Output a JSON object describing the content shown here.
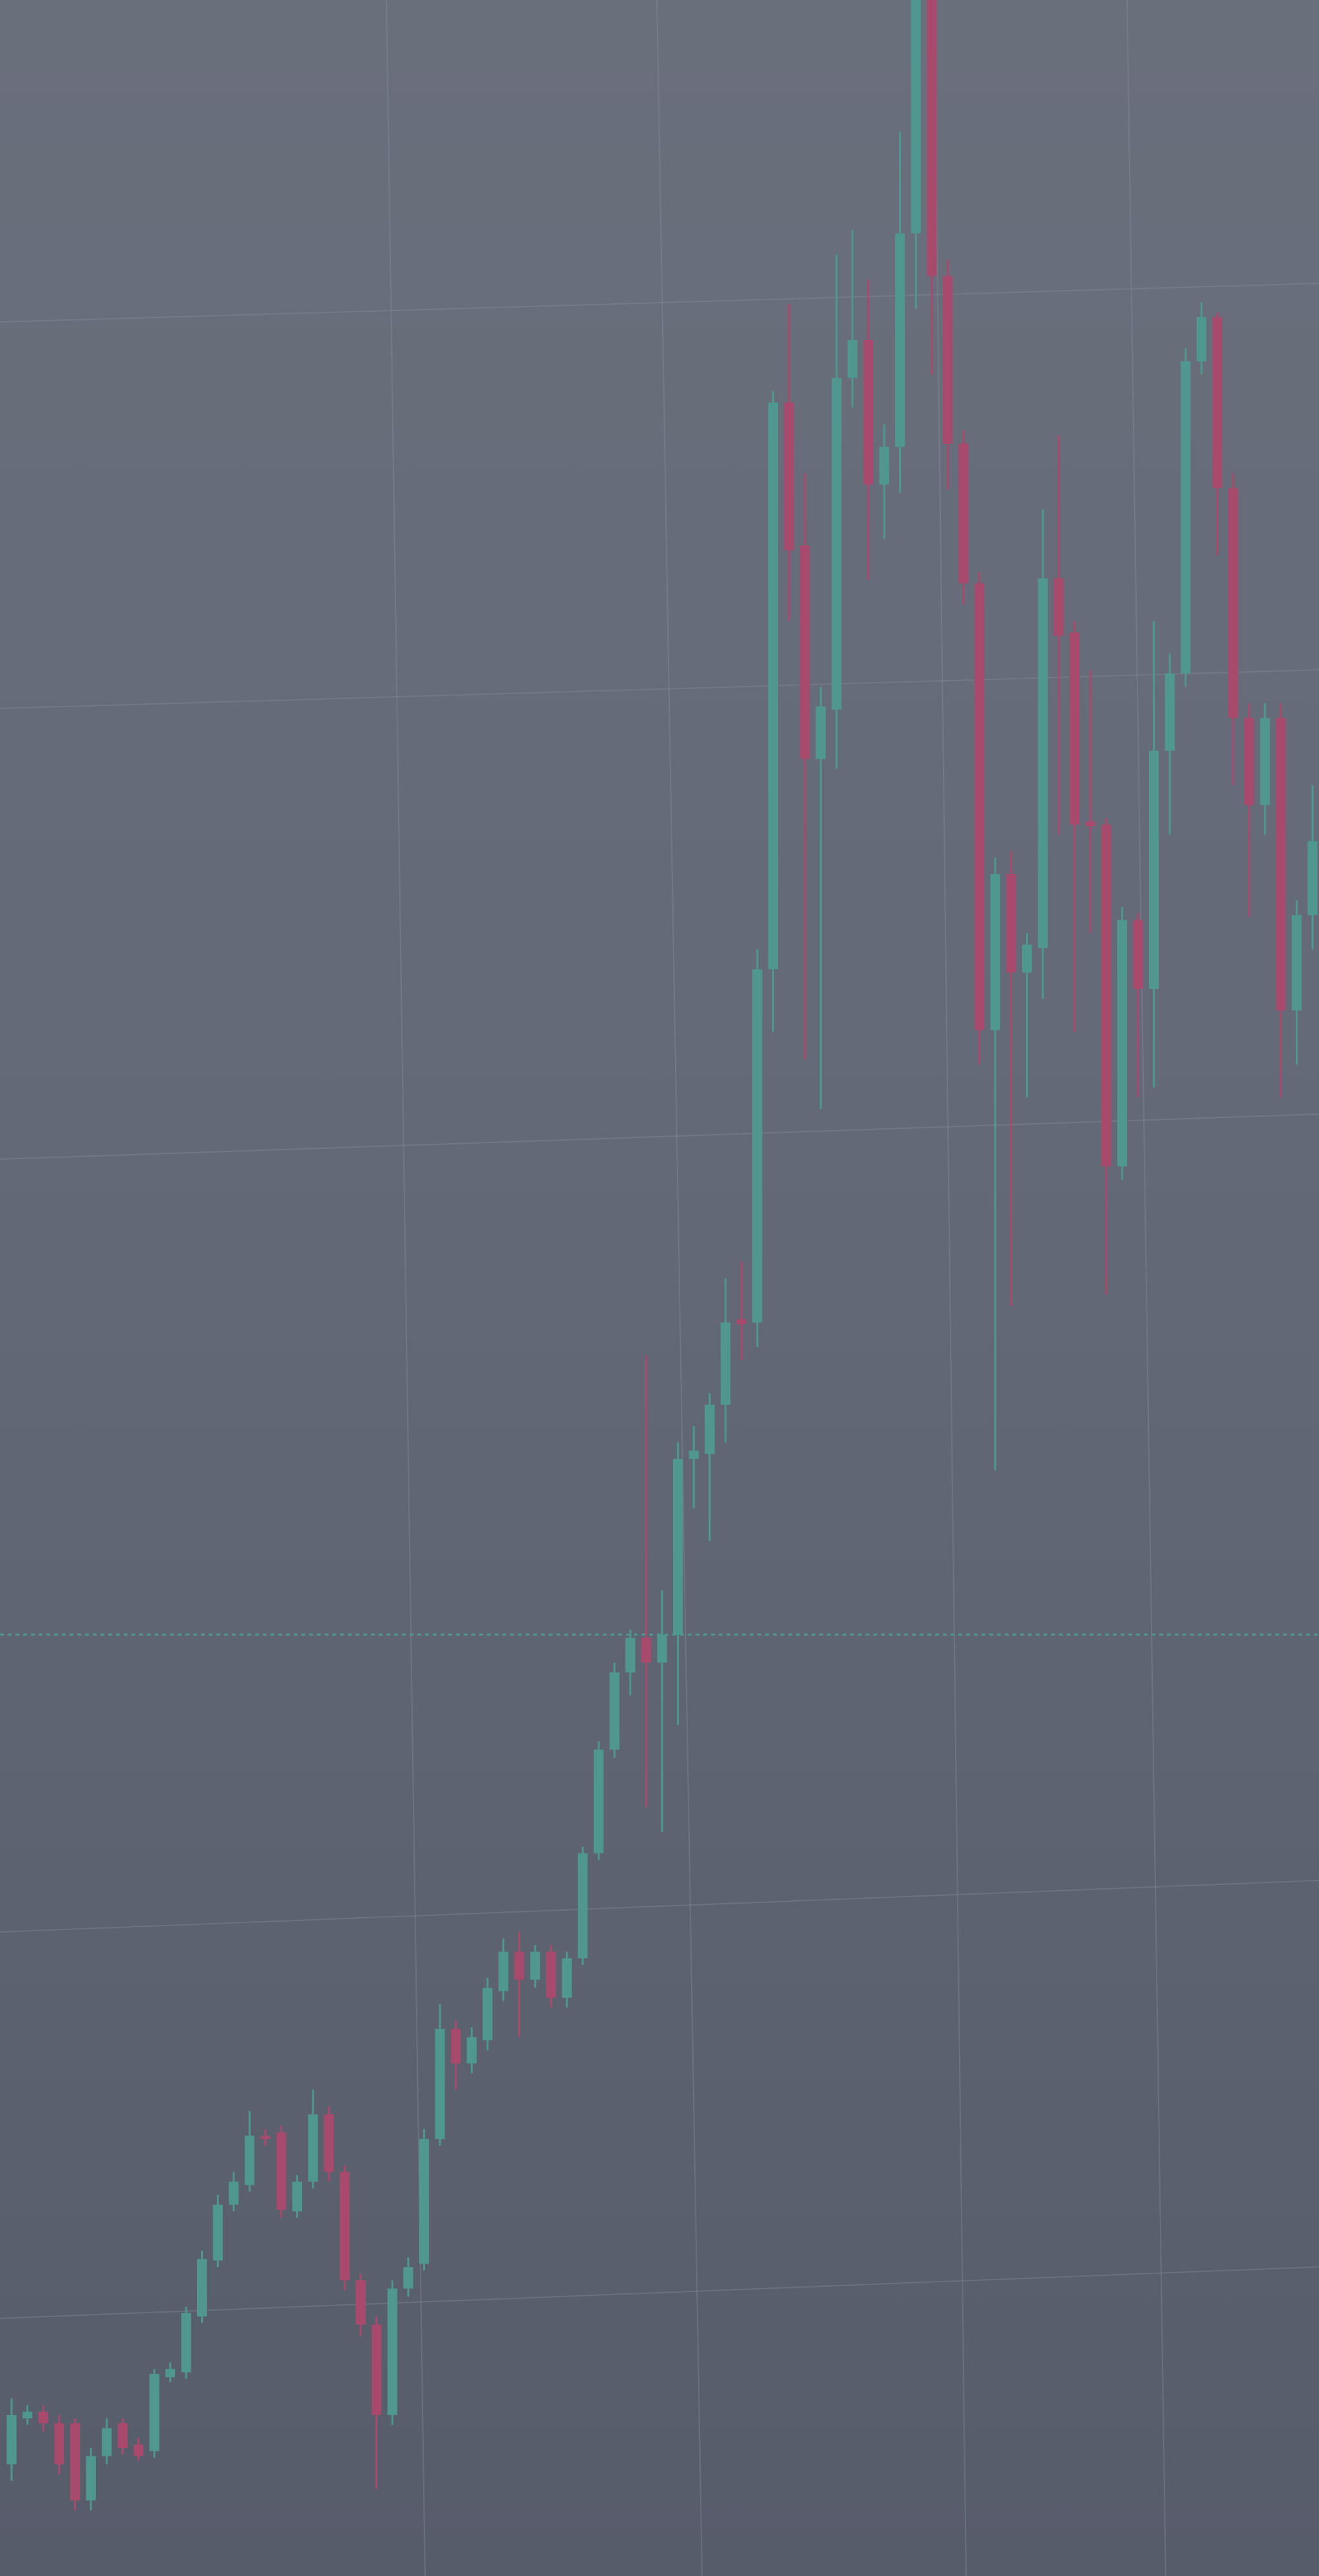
{
  "chart_data": {
    "type": "candlestick",
    "ylim": [
      0,
      1568
    ],
    "up_color": "#4f978f",
    "down_color": "#a84a6c",
    "price_line": 573,
    "open": [
      68,
      96,
      100,
      93,
      93,
      46,
      73,
      93,
      80,
      76,
      121,
      124,
      158,
      192,
      226,
      238,
      268,
      270,
      222,
      240,
      281,
      246,
      180,
      153,
      98,
      175,
      190,
      266,
      333,
      312,
      326,
      356,
      380,
      363,
      380,
      352,
      376,
      440,
      503,
      550,
      571,
      556,
      573,
      680,
      683,
      713,
      765,
      763,
      978,
      1323,
      1236,
      1106,
      1136,
      1338,
      1361,
      1273,
      1296,
      1426,
      1568,
      1400,
      1298,
      1213,
      941,
      1036,
      976,
      991,
      1216,
      1183,
      1068,
      1066,
      858,
      1008,
      966,
      1111,
      1158,
      1348,
      1375,
      1271,
      1131,
      1078,
      1131,
      953,
      1011
    ],
    "high": [
      108,
      104,
      104,
      98,
      96,
      78,
      96,
      96,
      84,
      126,
      130,
      164,
      198,
      232,
      246,
      283,
      272,
      274,
      244,
      296,
      286,
      250,
      184,
      158,
      180,
      194,
      272,
      348,
      338,
      334,
      364,
      388,
      392,
      384,
      384,
      380,
      444,
      508,
      556,
      576,
      743,
      600,
      690,
      700,
      720,
      790,
      800,
      990,
      1330,
      1383,
      1280,
      1150,
      1413,
      1428,
      1398,
      1310,
      1488,
      1568,
      1568,
      1410,
      1306,
      1220,
      1046,
      1050,
      1000,
      1258,
      1303,
      1190,
      1160,
      1070,
      1016,
      1012,
      1190,
      1170,
      1356,
      1384,
      1378,
      1280,
      1140,
      1140,
      1140,
      1020,
      1090
    ],
    "low": [
      58,
      92,
      88,
      62,
      40,
      40,
      68,
      74,
      70,
      72,
      118,
      120,
      154,
      188,
      222,
      234,
      262,
      218,
      218,
      236,
      240,
      174,
      146,
      53,
      92,
      170,
      186,
      262,
      296,
      306,
      320,
      350,
      328,
      358,
      346,
      346,
      372,
      436,
      498,
      536,
      468,
      453,
      518,
      650,
      630,
      690,
      740,
      748,
      940,
      1190,
      923,
      893,
      1100,
      1320,
      1215,
      1240,
      1268,
      1380,
      1340,
      1270,
      1200,
      920,
      673,
      773,
      900,
      960,
      1060,
      940,
      1000,
      780,
      850,
      900,
      906,
      1060,
      1150,
      1340,
      1230,
      1090,
      1010,
      1060,
      900,
      920,
      990
    ],
    "close": [
      98,
      100,
      93,
      68,
      46,
      73,
      90,
      78,
      73,
      123,
      126,
      160,
      193,
      226,
      240,
      268,
      266,
      223,
      240,
      281,
      246,
      180,
      153,
      98,
      175,
      188,
      266,
      333,
      312,
      328,
      358,
      380,
      363,
      380,
      352,
      376,
      440,
      503,
      550,
      571,
      556,
      573,
      680,
      685,
      713,
      763,
      762,
      978,
      1323,
      1233,
      1106,
      1138,
      1338,
      1361,
      1273,
      1296,
      1426,
      1568,
      1400,
      1298,
      1213,
      941,
      1036,
      976,
      993,
      1216,
      1181,
      1066,
      1065,
      858,
      1008,
      966,
      1111,
      1158,
      1348,
      1375,
      1271,
      1131,
      1078,
      1131,
      953,
      1011,
      1056
    ]
  }
}
